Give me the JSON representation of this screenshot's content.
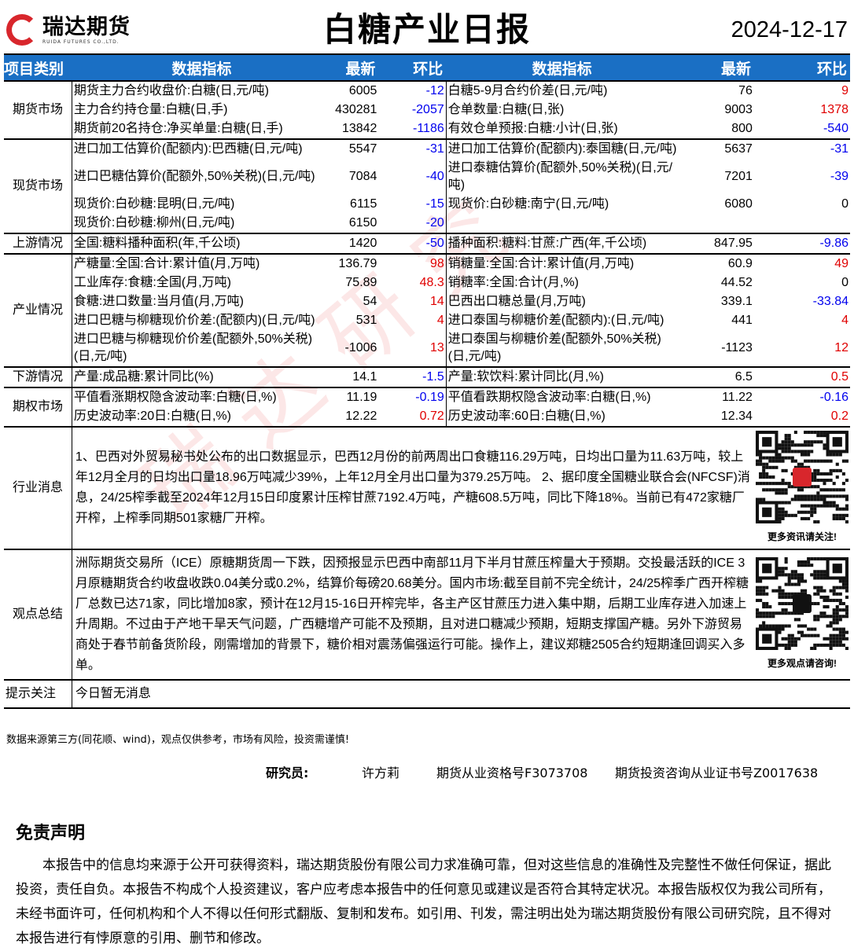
{
  "header": {
    "logo_cn": "瑞达期货",
    "logo_en": "RUIDA FUTURES CO.,LTD.",
    "title": "白糖产业日报",
    "date": "2024-12-17"
  },
  "columns": [
    "项目类别",
    "数据指标",
    "最新",
    "环比",
    "数据指标",
    "最新",
    "环比"
  ],
  "sections": [
    {
      "category": "期货市场",
      "rows": [
        [
          "期货主力合约收盘价:白糖(日,元/吨)",
          "6005",
          "-12",
          "白糖5-9月合约价差(日,元/吨)",
          "76",
          "9"
        ],
        [
          "主力合约持仓量:白糖(日,手)",
          "430281",
          "-2057",
          "仓单数量:白糖(日,张)",
          "9003",
          "1378"
        ],
        [
          "期货前20名持仓:净买单量:白糖(日,手)",
          "13842",
          "-1186",
          "有效仓单预报:白糖:小计(日,张)",
          "800",
          "-540"
        ]
      ]
    },
    {
      "category": "现货市场",
      "rows": [
        [
          "进口加工估算价(配额内):巴西糖(日,元/吨)",
          "5547",
          "-31",
          "进口加工估算价(配额内):泰国糖(日,元/吨)",
          "5637",
          "-31"
        ],
        [
          "进口巴糖估算价(配额外,50%关税)(日,元/吨)",
          "7084",
          "-40",
          "进口泰糖估算价(配额外,50%关税)(日,元/吨)",
          "7201",
          "-39"
        ],
        [
          "现货价:白砂糖:昆明(日,元/吨)",
          "6115",
          "-15",
          "现货价:白砂糖:南宁(日,元/吨)",
          "6080",
          "0"
        ],
        [
          "现货价:白砂糖:柳州(日,元/吨)",
          "6150",
          "-20",
          "",
          "",
          ""
        ]
      ]
    },
    {
      "category": "上游情况",
      "rows": [
        [
          "全国:糖料播种面积(年,千公顷)",
          "1420",
          "-50",
          "播种面积:糖料:甘蔗:广西(年,千公顷)",
          "847.95",
          "-9.86"
        ]
      ]
    },
    {
      "category": "产业情况",
      "rows": [
        [
          "产糖量:全国:合计:累计值(月,万吨)",
          "136.79",
          "98",
          "销糖量:全国:合计:累计值(月,万吨)",
          "60.9",
          "49"
        ],
        [
          "工业库存:食糖:全国(月,万吨)",
          "75.89",
          "48.3",
          "销糖率:全国:合计(月,%)",
          "44.52",
          "0"
        ],
        [
          "食糖:进口数量:当月值(月,万吨)",
          "54",
          "14",
          "巴西出口糖总量(月,万吨)",
          "339.1",
          "-33.84"
        ],
        [
          "进口巴糖与柳糖现价价差:(配额内)(日,元/吨)",
          "531",
          "4",
          "进口泰国与柳糖价差(配额内):(日,元/吨)",
          "441",
          "4"
        ],
        [
          "进口巴糖与柳糖现价价差(配额外,50%关税)(日,元/吨)",
          "-1006",
          "13",
          "进口泰国与柳糖价差(配额外,50%关税)(日,元/吨)",
          "-1123",
          "12"
        ]
      ]
    },
    {
      "category": "下游情况",
      "rows": [
        [
          "产量:成品糖:累计同比(%)",
          "14.1",
          "-1.5",
          "产量:软饮料:累计同比(月,%)",
          "6.5",
          "0.5"
        ]
      ]
    },
    {
      "category": "期权市场",
      "rows": [
        [
          "平值看涨期权隐含波动率:白糖(日,%)",
          "11.19",
          "-0.19",
          "平值看跌期权隐含波动率:白糖(日,%)",
          "11.22",
          "-0.16"
        ],
        [
          "历史波动率:20日:白糖(日,%)",
          "12.22",
          "0.72",
          "历史波动率:60日:白糖(日,%)",
          "12.34",
          "0.2"
        ]
      ]
    }
  ],
  "news": {
    "category": "行业消息",
    "text": "1、巴西对外贸易秘书处公布的出口数据显示，巴西12月份的前两周出口食糖116.29万吨，日均出口量为11.63万吨，较上年12月全月的日均出口量18.96万吨减少39%，上年12月全月出口量为379.25万吨。 2、据印度全国糖业联合会(NFCSF)消息，24/25榨季截至2024年12月15日印度累计压榨甘蔗7192.4万吨，产糖608.5万吨，同比下降18%。当前已有472家糖厂开榨，上榨季同期501家糖厂开榨。",
    "qr_caption": "更多资讯请关注!"
  },
  "summary": {
    "category": "观点总结",
    "text": "洲际期货交易所（ICE）原糖期货周一下跌，因预报显示巴西中南部11月下半月甘蔗压榨量大于预期。交投最活跃的ICE 3月原糖期货合约收盘收跌0.04美分或0.2%，结算价每磅20.68美分。国内市场:截至目前不完全统计，24/25榨季广西开榨糖厂总数已达71家，同比增加8家，预计在12月15-16日开榨完毕，各主产区甘蔗压力进入集中期，后期工业库存进入加速上升周期。不过由于产地干旱天气问题，广西糖增产可能不及预期，且对进口糖减少预期，短期支撑国产糖。另外下游贸易商处于春节前备货阶段，刚需增加的背景下，糖价相对震荡偏强运行可能。操作上，建议郑糖2505合约短期逢回调买入多单。",
    "qr_caption": "更多观点请咨询!"
  },
  "tips": {
    "category": "提示关注",
    "text": "今日暂无消息"
  },
  "note": "数据来源第三方(同花顺、wind)，观点仅供参考，市场有风险，投资需谨慎!",
  "researcher": {
    "label": "研究员:",
    "name": "许方莉",
    "futures_cert": "期货从业资格号F3073708",
    "advisory_cert": "期货投资咨询从业证书号Z0017638"
  },
  "disclaimer": {
    "title": "免责声明",
    "text": "本报告中的信息均来源于公开可获得资料，瑞达期货股份有限公司力求准确可靠，但对这些信息的准确性及完整性不做任何保证，据此投资，责任自负。本报告不构成个人投资建议，客户应考虑本报告中的任何意见或建议是否符合其特定状况。本报告版权仅为我公司所有，未经书面许可，任何机构和个人不得以任何形式翻版、复制和发布。如引用、刊发，需注明出处为瑞达期货股份有限公司研究院，且不得对本报告进行有悖原意的引用、删节和修改。"
  },
  "watermark": "瑞达研究",
  "colors": {
    "header_bg": "#1a6fc4",
    "positive": "#e00000",
    "negative": "#0000ee",
    "logo": "#d8262c"
  }
}
